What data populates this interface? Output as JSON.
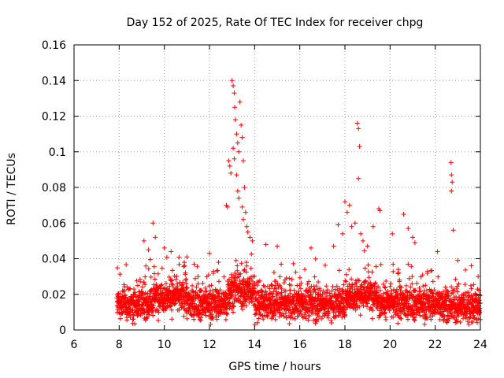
{
  "chart_data": {
    "type": "scatter",
    "title": "Day 152 of 2025, Rate Of TEC Index for receiver chpg",
    "xlabel": "GPS time / hours",
    "ylabel": "ROTI / TECUs",
    "xlim": [
      6,
      24
    ],
    "ylim": [
      0,
      0.16
    ],
    "grid": true,
    "marker": "+",
    "color": "#ff0000",
    "xticks": [
      6,
      8,
      10,
      12,
      14,
      16,
      18,
      20,
      22,
      24
    ],
    "xtick_labels": [
      "6",
      "8",
      "10",
      "12",
      "14",
      "16",
      "18",
      "20",
      "22",
      "24"
    ],
    "yticks": [
      0,
      0.02,
      0.04,
      0.06,
      0.08,
      0.1,
      0.12,
      0.14,
      0.16
    ],
    "ytick_labels": [
      "0",
      "0.02",
      "0.04",
      "0.06",
      "0.08",
      "0.1",
      "0.12",
      "0.14",
      "0.16"
    ],
    "series": [
      {
        "name": "ROTI",
        "outliers": [
          [
            9.1,
            0.05
          ],
          [
            9.3,
            0.045
          ],
          [
            9.5,
            0.06
          ],
          [
            9.6,
            0.052
          ],
          [
            10.0,
            0.046
          ],
          [
            10.3,
            0.044
          ],
          [
            11.0,
            0.041
          ],
          [
            12.0,
            0.043
          ],
          [
            12.4,
            0.038
          ],
          [
            12.75,
            0.07
          ],
          [
            12.8,
            0.069
          ],
          [
            12.85,
            0.095
          ],
          [
            12.9,
            0.092
          ],
          [
            12.95,
            0.088
          ],
          [
            13.0,
            0.14
          ],
          [
            13.05,
            0.137
          ],
          [
            13.1,
            0.133
          ],
          [
            13.12,
            0.125
          ],
          [
            13.15,
            0.118
          ],
          [
            13.2,
            0.11
          ],
          [
            13.25,
            0.105
          ],
          [
            13.3,
            0.1
          ],
          [
            13.35,
            0.128
          ],
          [
            13.4,
            0.115
          ],
          [
            13.45,
            0.108
          ],
          [
            13.5,
            0.095
          ],
          [
            13.55,
            0.08
          ],
          [
            13.6,
            0.066
          ],
          [
            13.65,
            0.058
          ],
          [
            13.05,
            0.102
          ],
          [
            13.1,
            0.096
          ],
          [
            13.2,
            0.087
          ],
          [
            13.25,
            0.078
          ],
          [
            13.3,
            0.074
          ],
          [
            13.45,
            0.069
          ],
          [
            13.5,
            0.062
          ],
          [
            13.7,
            0.055
          ],
          [
            13.8,
            0.052
          ],
          [
            13.9,
            0.05
          ],
          [
            14.5,
            0.048
          ],
          [
            15.0,
            0.047
          ],
          [
            16.5,
            0.046
          ],
          [
            17.5,
            0.047
          ],
          [
            17.7,
            0.059
          ],
          [
            17.9,
            0.054
          ],
          [
            18.0,
            0.072
          ],
          [
            18.1,
            0.066
          ],
          [
            18.2,
            0.07
          ],
          [
            18.3,
            0.058
          ],
          [
            18.45,
            0.06
          ],
          [
            18.55,
            0.116
          ],
          [
            18.6,
            0.113
          ],
          [
            18.65,
            0.103
          ],
          [
            18.6,
            0.085
          ],
          [
            18.7,
            0.054
          ],
          [
            18.8,
            0.05
          ],
          [
            19.0,
            0.047
          ],
          [
            19.25,
            0.058
          ],
          [
            19.5,
            0.068
          ],
          [
            19.55,
            0.067
          ],
          [
            20.1,
            0.054
          ],
          [
            20.6,
            0.065
          ],
          [
            20.8,
            0.057
          ],
          [
            21.0,
            0.052
          ],
          [
            21.1,
            0.049
          ],
          [
            22.1,
            0.044
          ],
          [
            22.7,
            0.094
          ],
          [
            22.72,
            0.087
          ],
          [
            22.75,
            0.083
          ],
          [
            22.72,
            0.078
          ],
          [
            22.8,
            0.056
          ],
          [
            23.0,
            0.039
          ],
          [
            23.6,
            0.036
          ],
          [
            23.9,
            0.03
          ]
        ]
      }
    ]
  }
}
